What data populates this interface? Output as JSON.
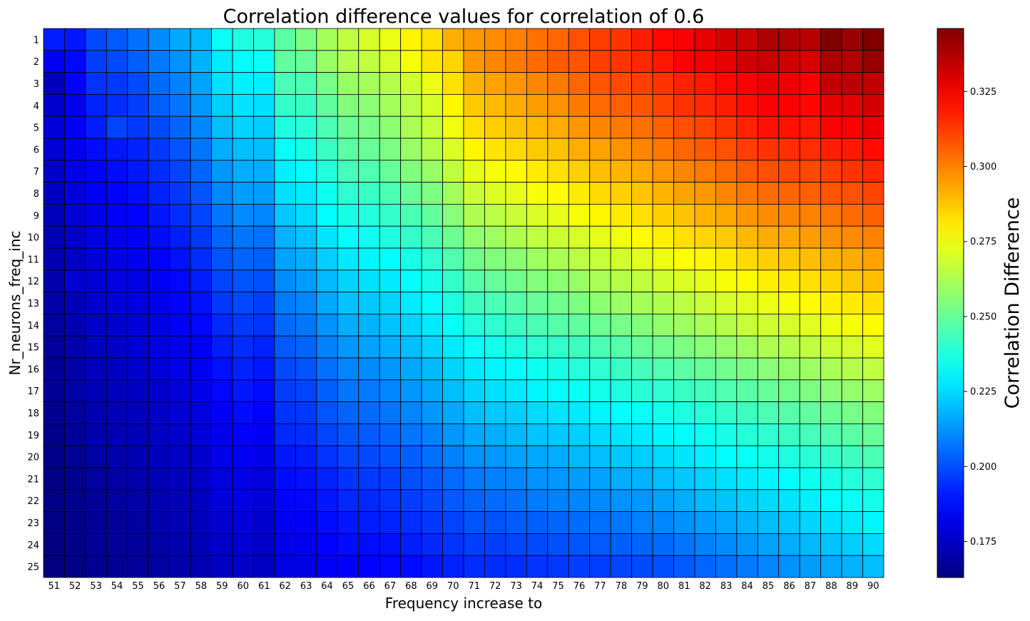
{
  "chart_data": {
    "type": "heatmap",
    "title": "Correlation difference values for correlation of 0.6",
    "xlabel": "Frequency increase to",
    "ylabel": "Nr_neurons_freq_inc",
    "colorbar_label": "Correlation Difference",
    "colormap": "jet",
    "vmin": 0.163,
    "vmax": 0.346,
    "colorbar_ticks": [
      "0.175",
      "0.200",
      "0.225",
      "0.250",
      "0.275",
      "0.300",
      "0.325"
    ],
    "x": [
      51,
      52,
      53,
      54,
      55,
      56,
      57,
      58,
      59,
      60,
      61,
      62,
      63,
      64,
      65,
      66,
      67,
      68,
      69,
      70,
      71,
      72,
      73,
      74,
      75,
      76,
      77,
      78,
      79,
      80,
      81,
      82,
      83,
      84,
      85,
      86,
      87,
      88,
      89,
      90
    ],
    "y": [
      1,
      2,
      3,
      4,
      5,
      6,
      7,
      8,
      9,
      10,
      11,
      12,
      13,
      14,
      15,
      16,
      17,
      18,
      19,
      20,
      21,
      22,
      23,
      24,
      25
    ],
    "value_model": "approximate values estimated from colormap; values[row][col] with row = Nr_neurons_freq_inc (1..25), col = frequency increase (51..90)",
    "values": [
      [
        0.191,
        0.19,
        0.199,
        0.202,
        0.206,
        0.211,
        0.216,
        0.219,
        0.233,
        0.237,
        0.238,
        0.248,
        0.254,
        0.261,
        0.266,
        0.27,
        0.274,
        0.279,
        0.283,
        0.292,
        0.296,
        0.298,
        0.3,
        0.303,
        0.305,
        0.309,
        0.312,
        0.314,
        0.318,
        0.322,
        0.324,
        0.327,
        0.331,
        0.333,
        0.338,
        0.338,
        0.336,
        0.346,
        0.341,
        0.346
      ],
      [
        0.184,
        0.187,
        0.197,
        0.199,
        0.203,
        0.208,
        0.212,
        0.218,
        0.228,
        0.232,
        0.233,
        0.249,
        0.25,
        0.259,
        0.264,
        0.266,
        0.27,
        0.276,
        0.282,
        0.285,
        0.296,
        0.299,
        0.301,
        0.304,
        0.307,
        0.308,
        0.312,
        0.314,
        0.316,
        0.319,
        0.323,
        0.325,
        0.327,
        0.332,
        0.333,
        0.332,
        0.33,
        0.338,
        0.337,
        0.342
      ],
      [
        0.174,
        0.186,
        0.195,
        0.196,
        0.199,
        0.205,
        0.209,
        0.215,
        0.226,
        0.229,
        0.229,
        0.245,
        0.245,
        0.253,
        0.259,
        0.261,
        0.264,
        0.269,
        0.274,
        0.283,
        0.291,
        0.294,
        0.296,
        0.299,
        0.301,
        0.305,
        0.308,
        0.31,
        0.312,
        0.314,
        0.317,
        0.319,
        0.322,
        0.324,
        0.327,
        0.326,
        0.324,
        0.334,
        0.335,
        0.334
      ],
      [
        0.177,
        0.183,
        0.192,
        0.194,
        0.197,
        0.203,
        0.207,
        0.213,
        0.223,
        0.227,
        0.226,
        0.241,
        0.242,
        0.249,
        0.255,
        0.257,
        0.261,
        0.265,
        0.27,
        0.279,
        0.287,
        0.29,
        0.292,
        0.295,
        0.297,
        0.301,
        0.304,
        0.306,
        0.308,
        0.311,
        0.314,
        0.316,
        0.318,
        0.321,
        0.324,
        0.324,
        0.322,
        0.327,
        0.328,
        0.331
      ],
      [
        0.179,
        0.185,
        0.191,
        0.198,
        0.196,
        0.199,
        0.204,
        0.21,
        0.22,
        0.224,
        0.223,
        0.237,
        0.239,
        0.245,
        0.251,
        0.253,
        0.257,
        0.262,
        0.267,
        0.275,
        0.283,
        0.286,
        0.288,
        0.29,
        0.292,
        0.296,
        0.299,
        0.301,
        0.303,
        0.306,
        0.309,
        0.311,
        0.314,
        0.317,
        0.32,
        0.32,
        0.319,
        0.323,
        0.324,
        0.326
      ],
      [
        0.178,
        0.183,
        0.188,
        0.19,
        0.192,
        0.196,
        0.201,
        0.207,
        0.217,
        0.22,
        0.22,
        0.233,
        0.236,
        0.242,
        0.248,
        0.25,
        0.254,
        0.259,
        0.264,
        0.271,
        0.279,
        0.282,
        0.284,
        0.287,
        0.288,
        0.292,
        0.294,
        0.297,
        0.299,
        0.302,
        0.305,
        0.307,
        0.309,
        0.312,
        0.314,
        0.315,
        0.315,
        0.318,
        0.319,
        0.321
      ],
      [
        0.176,
        0.181,
        0.186,
        0.188,
        0.19,
        0.194,
        0.198,
        0.204,
        0.213,
        0.217,
        0.217,
        0.229,
        0.232,
        0.238,
        0.244,
        0.246,
        0.25,
        0.255,
        0.259,
        0.266,
        0.273,
        0.276,
        0.278,
        0.281,
        0.283,
        0.286,
        0.289,
        0.291,
        0.293,
        0.296,
        0.299,
        0.301,
        0.304,
        0.307,
        0.309,
        0.31,
        0.31,
        0.312,
        0.314,
        0.316
      ],
      [
        0.175,
        0.179,
        0.184,
        0.186,
        0.188,
        0.192,
        0.196,
        0.201,
        0.21,
        0.214,
        0.214,
        0.226,
        0.228,
        0.234,
        0.24,
        0.242,
        0.245,
        0.25,
        0.254,
        0.261,
        0.268,
        0.271,
        0.273,
        0.276,
        0.278,
        0.281,
        0.284,
        0.286,
        0.288,
        0.291,
        0.294,
        0.296,
        0.299,
        0.302,
        0.304,
        0.305,
        0.306,
        0.308,
        0.309,
        0.311
      ],
      [
        0.174,
        0.178,
        0.182,
        0.184,
        0.186,
        0.19,
        0.194,
        0.198,
        0.207,
        0.211,
        0.21,
        0.222,
        0.225,
        0.231,
        0.236,
        0.238,
        0.241,
        0.245,
        0.249,
        0.256,
        0.263,
        0.265,
        0.268,
        0.271,
        0.273,
        0.276,
        0.279,
        0.281,
        0.283,
        0.286,
        0.288,
        0.291,
        0.293,
        0.296,
        0.298,
        0.299,
        0.3,
        0.302,
        0.304,
        0.306
      ],
      [
        0.173,
        0.176,
        0.18,
        0.182,
        0.184,
        0.188,
        0.191,
        0.196,
        0.204,
        0.207,
        0.206,
        0.218,
        0.221,
        0.227,
        0.232,
        0.234,
        0.237,
        0.241,
        0.245,
        0.251,
        0.258,
        0.26,
        0.263,
        0.266,
        0.268,
        0.27,
        0.273,
        0.275,
        0.278,
        0.28,
        0.283,
        0.285,
        0.287,
        0.29,
        0.292,
        0.293,
        0.295,
        0.297,
        0.298,
        0.3
      ],
      [
        0.172,
        0.175,
        0.179,
        0.181,
        0.183,
        0.186,
        0.189,
        0.194,
        0.201,
        0.204,
        0.203,
        0.215,
        0.217,
        0.223,
        0.228,
        0.23,
        0.232,
        0.236,
        0.24,
        0.246,
        0.252,
        0.255,
        0.257,
        0.26,
        0.262,
        0.265,
        0.267,
        0.269,
        0.272,
        0.274,
        0.277,
        0.279,
        0.281,
        0.284,
        0.286,
        0.287,
        0.289,
        0.291,
        0.292,
        0.294
      ],
      [
        0.171,
        0.178,
        0.178,
        0.18,
        0.181,
        0.184,
        0.187,
        0.191,
        0.198,
        0.201,
        0.2,
        0.211,
        0.214,
        0.219,
        0.224,
        0.226,
        0.228,
        0.232,
        0.236,
        0.241,
        0.247,
        0.25,
        0.252,
        0.255,
        0.257,
        0.259,
        0.262,
        0.264,
        0.266,
        0.269,
        0.271,
        0.273,
        0.276,
        0.278,
        0.28,
        0.281,
        0.283,
        0.285,
        0.287,
        0.289
      ],
      [
        0.17,
        0.173,
        0.177,
        0.179,
        0.18,
        0.183,
        0.186,
        0.189,
        0.196,
        0.199,
        0.197,
        0.208,
        0.21,
        0.216,
        0.221,
        0.222,
        0.224,
        0.228,
        0.232,
        0.237,
        0.243,
        0.245,
        0.247,
        0.25,
        0.252,
        0.254,
        0.257,
        0.259,
        0.261,
        0.263,
        0.265,
        0.268,
        0.27,
        0.272,
        0.274,
        0.276,
        0.278,
        0.28,
        0.281,
        0.283
      ],
      [
        0.169,
        0.172,
        0.176,
        0.177,
        0.179,
        0.181,
        0.184,
        0.187,
        0.193,
        0.196,
        0.195,
        0.205,
        0.207,
        0.212,
        0.217,
        0.218,
        0.221,
        0.224,
        0.228,
        0.233,
        0.238,
        0.24,
        0.242,
        0.245,
        0.247,
        0.249,
        0.251,
        0.253,
        0.255,
        0.258,
        0.26,
        0.262,
        0.264,
        0.267,
        0.269,
        0.27,
        0.272,
        0.274,
        0.276,
        0.278
      ],
      [
        0.168,
        0.171,
        0.175,
        0.176,
        0.178,
        0.18,
        0.182,
        0.185,
        0.191,
        0.194,
        0.192,
        0.202,
        0.204,
        0.209,
        0.213,
        0.215,
        0.217,
        0.22,
        0.224,
        0.228,
        0.233,
        0.235,
        0.237,
        0.24,
        0.241,
        0.243,
        0.245,
        0.247,
        0.25,
        0.252,
        0.254,
        0.256,
        0.258,
        0.26,
        0.263,
        0.264,
        0.266,
        0.268,
        0.27,
        0.272
      ],
      [
        0.167,
        0.17,
        0.174,
        0.175,
        0.177,
        0.179,
        0.181,
        0.184,
        0.189,
        0.192,
        0.19,
        0.199,
        0.201,
        0.206,
        0.21,
        0.211,
        0.213,
        0.216,
        0.219,
        0.224,
        0.228,
        0.23,
        0.232,
        0.234,
        0.236,
        0.238,
        0.24,
        0.242,
        0.244,
        0.246,
        0.248,
        0.25,
        0.252,
        0.254,
        0.256,
        0.258,
        0.26,
        0.262,
        0.264,
        0.266
      ],
      [
        0.167,
        0.17,
        0.173,
        0.174,
        0.175,
        0.177,
        0.179,
        0.182,
        0.187,
        0.19,
        0.188,
        0.197,
        0.198,
        0.203,
        0.207,
        0.208,
        0.21,
        0.213,
        0.216,
        0.22,
        0.224,
        0.226,
        0.228,
        0.23,
        0.231,
        0.233,
        0.235,
        0.237,
        0.239,
        0.24,
        0.242,
        0.244,
        0.246,
        0.248,
        0.25,
        0.252,
        0.254,
        0.256,
        0.258,
        0.26
      ],
      [
        0.166,
        0.169,
        0.172,
        0.173,
        0.174,
        0.176,
        0.178,
        0.18,
        0.185,
        0.188,
        0.186,
        0.195,
        0.196,
        0.201,
        0.204,
        0.205,
        0.207,
        0.21,
        0.213,
        0.216,
        0.22,
        0.222,
        0.223,
        0.225,
        0.227,
        0.228,
        0.23,
        0.232,
        0.233,
        0.235,
        0.237,
        0.239,
        0.241,
        0.243,
        0.245,
        0.247,
        0.249,
        0.251,
        0.253,
        0.255
      ],
      [
        0.165,
        0.168,
        0.171,
        0.172,
        0.173,
        0.175,
        0.176,
        0.179,
        0.183,
        0.186,
        0.184,
        0.193,
        0.194,
        0.198,
        0.201,
        0.202,
        0.204,
        0.207,
        0.209,
        0.213,
        0.216,
        0.217,
        0.219,
        0.221,
        0.222,
        0.223,
        0.225,
        0.227,
        0.228,
        0.23,
        0.232,
        0.234,
        0.236,
        0.238,
        0.24,
        0.242,
        0.244,
        0.246,
        0.248,
        0.25
      ],
      [
        0.165,
        0.167,
        0.17,
        0.171,
        0.172,
        0.174,
        0.175,
        0.177,
        0.182,
        0.184,
        0.182,
        0.19,
        0.191,
        0.195,
        0.198,
        0.199,
        0.201,
        0.203,
        0.206,
        0.209,
        0.212,
        0.213,
        0.215,
        0.216,
        0.217,
        0.219,
        0.22,
        0.222,
        0.223,
        0.225,
        0.227,
        0.229,
        0.231,
        0.233,
        0.235,
        0.237,
        0.239,
        0.241,
        0.243,
        0.245
      ],
      [
        0.164,
        0.166,
        0.169,
        0.17,
        0.171,
        0.173,
        0.174,
        0.176,
        0.18,
        0.182,
        0.18,
        0.188,
        0.189,
        0.192,
        0.195,
        0.196,
        0.197,
        0.2,
        0.202,
        0.205,
        0.208,
        0.209,
        0.21,
        0.212,
        0.213,
        0.214,
        0.215,
        0.217,
        0.218,
        0.22,
        0.222,
        0.224,
        0.226,
        0.228,
        0.23,
        0.232,
        0.234,
        0.236,
        0.238,
        0.24
      ],
      [
        0.164,
        0.166,
        0.168,
        0.169,
        0.17,
        0.172,
        0.173,
        0.175,
        0.179,
        0.181,
        0.179,
        0.186,
        0.187,
        0.19,
        0.193,
        0.193,
        0.195,
        0.197,
        0.199,
        0.202,
        0.204,
        0.205,
        0.206,
        0.208,
        0.209,
        0.21,
        0.211,
        0.212,
        0.213,
        0.215,
        0.217,
        0.219,
        0.221,
        0.223,
        0.225,
        0.227,
        0.229,
        0.231,
        0.233,
        0.235
      ],
      [
        0.164,
        0.165,
        0.167,
        0.168,
        0.169,
        0.171,
        0.172,
        0.174,
        0.177,
        0.179,
        0.177,
        0.184,
        0.185,
        0.188,
        0.19,
        0.191,
        0.192,
        0.194,
        0.196,
        0.198,
        0.201,
        0.201,
        0.202,
        0.203,
        0.204,
        0.205,
        0.206,
        0.207,
        0.209,
        0.21,
        0.212,
        0.214,
        0.216,
        0.218,
        0.22,
        0.222,
        0.224,
        0.226,
        0.228,
        0.23
      ],
      [
        0.163,
        0.165,
        0.167,
        0.168,
        0.168,
        0.17,
        0.171,
        0.173,
        0.176,
        0.178,
        0.176,
        0.182,
        0.183,
        0.186,
        0.188,
        0.188,
        0.189,
        0.191,
        0.193,
        0.195,
        0.197,
        0.197,
        0.198,
        0.199,
        0.2,
        0.201,
        0.202,
        0.203,
        0.204,
        0.205,
        0.207,
        0.209,
        0.211,
        0.213,
        0.215,
        0.217,
        0.219,
        0.221,
        0.223,
        0.225
      ],
      [
        0.163,
        0.164,
        0.166,
        0.167,
        0.168,
        0.169,
        0.17,
        0.172,
        0.175,
        0.176,
        0.175,
        0.181,
        0.181,
        0.184,
        0.185,
        0.186,
        0.187,
        0.188,
        0.19,
        0.192,
        0.194,
        0.194,
        0.194,
        0.195,
        0.196,
        0.197,
        0.197,
        0.198,
        0.199,
        0.2,
        0.202,
        0.204,
        0.206,
        0.208,
        0.21,
        0.212,
        0.214,
        0.216,
        0.218,
        0.22
      ]
    ]
  }
}
